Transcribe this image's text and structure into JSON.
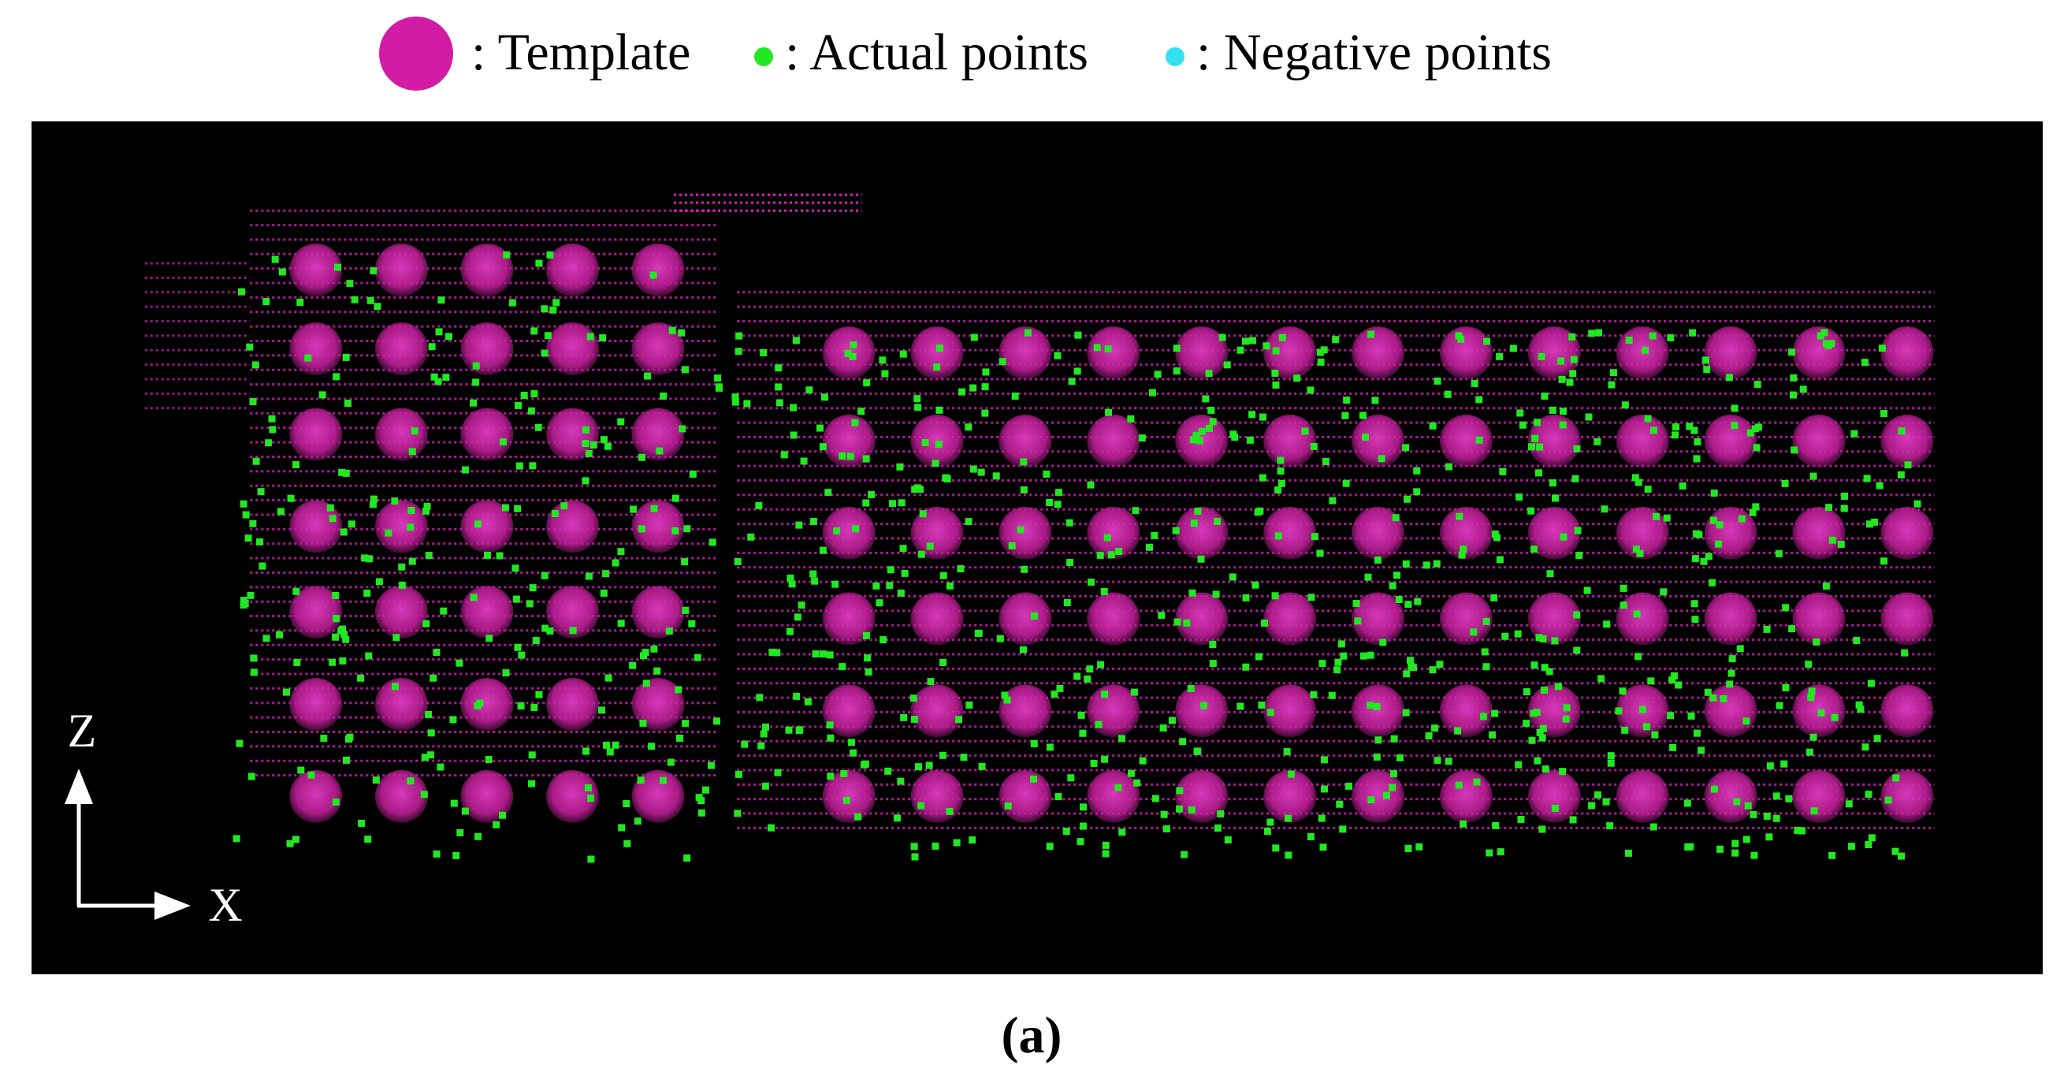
{
  "legend": {
    "items": [
      {
        "label": ": Template"
      },
      {
        "label": ": Actual points"
      },
      {
        "label": ": Negative points"
      }
    ]
  },
  "axes": {
    "z": "Z",
    "x": "X"
  },
  "caption": "(a)"
}
